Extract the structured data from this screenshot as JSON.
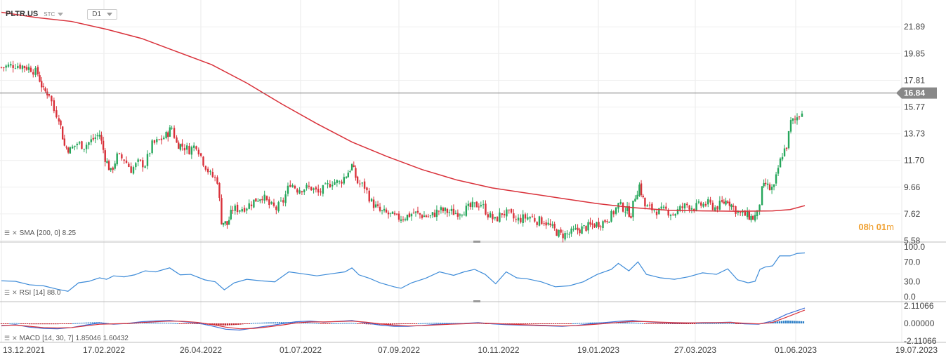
{
  "header": {
    "symbol": "PLTR.US",
    "type": "STC",
    "timeframe": "D1"
  },
  "indicators": {
    "sma": {
      "label": "SMA",
      "params": "[200,  0]",
      "value": "8.25"
    },
    "rsi": {
      "label": "RSI",
      "params": "[14]",
      "value": "88.0"
    },
    "macd": {
      "label": "MACD",
      "params": "[14, 30, 7]",
      "value1": "1.85046",
      "value2": "1.60432"
    }
  },
  "countdown": {
    "hours": "08",
    "h": "h",
    "minutes": "01",
    "m": "m"
  },
  "colors": {
    "up": "#26a65b",
    "down": "#d9313a",
    "sma": "#d9313a",
    "rsi": "#3d8bd8",
    "macd_line": "#3d6fd8",
    "signal_line": "#d9313a",
    "hist_up": "#2d7fc7",
    "hist_down": "#c0202a",
    "last_price_badge": "#888888"
  },
  "chart_data": {
    "type": "candlestick",
    "symbol": "PLTR.US",
    "last_price": 16.84,
    "y_ticks": [
      "21.89",
      "19.85",
      "17.81",
      "15.77",
      "13.73",
      "11.70",
      "9.66",
      "7.62",
      "5.58"
    ],
    "ylim": [
      5.58,
      23.4
    ],
    "x_ticks": [
      "13.12.2021",
      "17.02.2022",
      "26.04.2022",
      "01.07.2022",
      "07.09.2022",
      "10.11.2022",
      "19.01.2023",
      "27.03.2023",
      "01.06.2023",
      "19.07.2023"
    ],
    "close_path": [
      [
        0,
        18.8
      ],
      [
        10,
        18.9
      ],
      [
        20,
        19.0
      ],
      [
        30,
        18.9
      ],
      [
        42,
        18.7
      ],
      [
        52,
        18.3
      ],
      [
        60,
        17.0
      ],
      [
        68,
        16.8
      ],
      [
        75,
        15.5
      ],
      [
        82,
        15.0
      ],
      [
        90,
        12.8
      ],
      [
        98,
        12.5
      ],
      [
        108,
        13.0
      ],
      [
        118,
        12.8
      ],
      [
        128,
        13.2
      ],
      [
        140,
        13.7
      ],
      [
        148,
        11.9
      ],
      [
        156,
        10.8
      ],
      [
        165,
        12.0
      ],
      [
        175,
        11.8
      ],
      [
        185,
        11.0
      ],
      [
        195,
        11.5
      ],
      [
        205,
        11.4
      ],
      [
        215,
        12.9
      ],
      [
        225,
        13.2
      ],
      [
        235,
        13.6
      ],
      [
        243,
        14.2
      ],
      [
        250,
        13.0
      ],
      [
        258,
        12.8
      ],
      [
        268,
        12.5
      ],
      [
        278,
        12.9
      ],
      [
        288,
        11.6
      ],
      [
        298,
        10.6
      ],
      [
        308,
        10.2
      ],
      [
        314,
        7.1
      ],
      [
        322,
        6.8
      ],
      [
        330,
        8.0
      ],
      [
        340,
        8.0
      ],
      [
        350,
        8.2
      ],
      [
        360,
        8.6
      ],
      [
        372,
        9.0
      ],
      [
        382,
        8.3
      ],
      [
        392,
        8.0
      ],
      [
        402,
        8.6
      ],
      [
        412,
        10.0
      ],
      [
        422,
        9.5
      ],
      [
        432,
        9.6
      ],
      [
        442,
        9.6
      ],
      [
        452,
        9.2
      ],
      [
        462,
        9.6
      ],
      [
        472,
        10.1
      ],
      [
        482,
        10.0
      ],
      [
        492,
        10.6
      ],
      [
        500,
        11.3
      ],
      [
        508,
        10.0
      ],
      [
        518,
        9.7
      ],
      [
        528,
        8.5
      ],
      [
        540,
        7.8
      ],
      [
        552,
        7.6
      ],
      [
        564,
        7.3
      ],
      [
        576,
        7.4
      ],
      [
        588,
        7.7
      ],
      [
        600,
        7.5
      ],
      [
        612,
        7.4
      ],
      [
        624,
        7.9
      ],
      [
        636,
        7.8
      ],
      [
        648,
        7.7
      ],
      [
        660,
        7.9
      ],
      [
        672,
        8.2
      ],
      [
        684,
        8.4
      ],
      [
        694,
        7.6
      ],
      [
        704,
        7.1
      ],
      [
        714,
        7.7
      ],
      [
        724,
        7.6
      ],
      [
        734,
        7.1
      ],
      [
        744,
        7.3
      ],
      [
        754,
        7.4
      ],
      [
        764,
        7.1
      ],
      [
        774,
        7.1
      ],
      [
        786,
        6.5
      ],
      [
        798,
        6.0
      ],
      [
        810,
        6.1
      ],
      [
        822,
        6.4
      ],
      [
        834,
        6.6
      ],
      [
        846,
        6.8
      ],
      [
        858,
        7.0
      ],
      [
        870,
        7.5
      ],
      [
        880,
        8.3
      ],
      [
        890,
        8.0
      ],
      [
        898,
        7.6
      ],
      [
        904,
        9.0
      ],
      [
        910,
        9.8
      ],
      [
        918,
        8.2
      ],
      [
        928,
        8.0
      ],
      [
        938,
        7.8
      ],
      [
        948,
        7.9
      ],
      [
        958,
        7.6
      ],
      [
        968,
        8.0
      ],
      [
        978,
        8.3
      ],
      [
        988,
        8.1
      ],
      [
        998,
        8.3
      ],
      [
        1008,
        8.4
      ],
      [
        1018,
        8.1
      ],
      [
        1028,
        8.4
      ],
      [
        1036,
        8.7
      ],
      [
        1044,
        8.1
      ],
      [
        1054,
        7.6
      ],
      [
        1064,
        7.5
      ],
      [
        1072,
        7.3
      ],
      [
        1078,
        7.6
      ],
      [
        1085,
        9.4
      ],
      [
        1090,
        9.9
      ],
      [
        1096,
        9.5
      ],
      [
        1102,
        9.6
      ],
      [
        1108,
        11.1
      ],
      [
        1114,
        12.2
      ],
      [
        1120,
        12.8
      ],
      [
        1126,
        14.6
      ],
      [
        1132,
        14.8
      ],
      [
        1138,
        15.2
      ],
      [
        1142,
        15.6
      ],
      [
        1146,
        16.84
      ]
    ],
    "sma_200": {
      "name": "SMA [200, 0]",
      "points": [
        [
          0,
          23.0
        ],
        [
          50,
          22.6
        ],
        [
          100,
          22.3
        ],
        [
          150,
          21.7
        ],
        [
          200,
          21.0
        ],
        [
          250,
          20.0
        ],
        [
          300,
          19.0
        ],
        [
          350,
          17.6
        ],
        [
          400,
          16.0
        ],
        [
          450,
          14.5
        ],
        [
          500,
          13.1
        ],
        [
          550,
          12.0
        ],
        [
          600,
          11.0
        ],
        [
          650,
          10.2
        ],
        [
          700,
          9.6
        ],
        [
          750,
          9.2
        ],
        [
          800,
          8.8
        ],
        [
          850,
          8.4
        ],
        [
          900,
          8.1
        ],
        [
          950,
          7.9
        ],
        [
          1000,
          7.85
        ],
        [
          1050,
          7.82
        ],
        [
          1100,
          7.85
        ],
        [
          1125,
          7.95
        ],
        [
          1146,
          8.25
        ]
      ]
    },
    "rsi": {
      "name": "RSI [14]",
      "y_ticks": [
        "100.0",
        "70.0",
        "30.0",
        "0.0"
      ],
      "ylim": [
        0,
        100
      ],
      "points": [
        [
          0,
          32
        ],
        [
          20,
          31
        ],
        [
          40,
          24
        ],
        [
          60,
          22
        ],
        [
          80,
          15
        ],
        [
          95,
          11
        ],
        [
          110,
          28
        ],
        [
          125,
          31
        ],
        [
          140,
          38
        ],
        [
          150,
          35
        ],
        [
          160,
          42
        ],
        [
          175,
          40
        ],
        [
          190,
          44
        ],
        [
          205,
          52
        ],
        [
          220,
          50
        ],
        [
          240,
          58
        ],
        [
          255,
          44
        ],
        [
          270,
          45
        ],
        [
          290,
          34
        ],
        [
          305,
          30
        ],
        [
          318,
          14
        ],
        [
          332,
          28
        ],
        [
          350,
          35
        ],
        [
          370,
          32
        ],
        [
          390,
          30
        ],
        [
          410,
          50
        ],
        [
          430,
          46
        ],
        [
          450,
          42
        ],
        [
          470,
          46
        ],
        [
          490,
          50
        ],
        [
          500,
          58
        ],
        [
          510,
          44
        ],
        [
          525,
          37
        ],
        [
          540,
          28
        ],
        [
          560,
          20
        ],
        [
          570,
          17
        ],
        [
          585,
          28
        ],
        [
          605,
          37
        ],
        [
          625,
          50
        ],
        [
          645,
          43
        ],
        [
          660,
          50
        ],
        [
          675,
          55
        ],
        [
          690,
          45
        ],
        [
          705,
          26
        ],
        [
          720,
          50
        ],
        [
          735,
          38
        ],
        [
          750,
          36
        ],
        [
          770,
          30
        ],
        [
          790,
          20
        ],
        [
          810,
          22
        ],
        [
          830,
          30
        ],
        [
          850,
          45
        ],
        [
          870,
          55
        ],
        [
          880,
          67
        ],
        [
          895,
          52
        ],
        [
          908,
          70
        ],
        [
          920,
          45
        ],
        [
          940,
          38
        ],
        [
          960,
          35
        ],
        [
          980,
          40
        ],
        [
          1000,
          48
        ],
        [
          1020,
          45
        ],
        [
          1036,
          56
        ],
        [
          1050,
          34
        ],
        [
          1065,
          28
        ],
        [
          1075,
          31
        ],
        [
          1082,
          55
        ],
        [
          1090,
          60
        ],
        [
          1100,
          62
        ],
        [
          1110,
          82
        ],
        [
          1125,
          82
        ],
        [
          1135,
          87
        ],
        [
          1146,
          88
        ]
      ]
    },
    "macd": {
      "name": "MACD [14, 30, 7]",
      "y_ticks": [
        "2.11066",
        "0.00000",
        "-2.11066"
      ],
      "ylim": [
        -2.11066,
        2.11066
      ],
      "macd_points": [
        [
          0,
          -0.3
        ],
        [
          20,
          -0.15
        ],
        [
          40,
          -0.45
        ],
        [
          60,
          -0.6
        ],
        [
          80,
          -0.65
        ],
        [
          100,
          -0.5
        ],
        [
          120,
          -0.2
        ],
        [
          140,
          0.05
        ],
        [
          160,
          -0.1
        ],
        [
          180,
          0.0
        ],
        [
          200,
          0.2
        ],
        [
          220,
          0.3
        ],
        [
          240,
          0.35
        ],
        [
          260,
          0.2
        ],
        [
          280,
          0.05
        ],
        [
          300,
          -0.3
        ],
        [
          320,
          -0.7
        ],
        [
          340,
          -0.8
        ],
        [
          360,
          -0.55
        ],
        [
          380,
          -0.3
        ],
        [
          400,
          -0.05
        ],
        [
          420,
          0.2
        ],
        [
          440,
          0.28
        ],
        [
          460,
          0.15
        ],
        [
          480,
          0.25
        ],
        [
          500,
          0.35
        ],
        [
          520,
          0.05
        ],
        [
          540,
          -0.2
        ],
        [
          560,
          -0.35
        ],
        [
          580,
          -0.35
        ],
        [
          600,
          -0.25
        ],
        [
          620,
          -0.1
        ],
        [
          640,
          -0.05
        ],
        [
          660,
          0.0
        ],
        [
          680,
          0.1
        ],
        [
          700,
          -0.05
        ],
        [
          720,
          -0.15
        ],
        [
          740,
          -0.2
        ],
        [
          760,
          -0.25
        ],
        [
          780,
          -0.3
        ],
        [
          800,
          -0.35
        ],
        [
          820,
          -0.25
        ],
        [
          840,
          -0.05
        ],
        [
          860,
          0.1
        ],
        [
          880,
          0.25
        ],
        [
          900,
          0.35
        ],
        [
          920,
          0.2
        ],
        [
          940,
          0.1
        ],
        [
          960,
          0.05
        ],
        [
          980,
          0.05
        ],
        [
          1000,
          0.1
        ],
        [
          1020,
          0.1
        ],
        [
          1040,
          0.15
        ],
        [
          1060,
          -0.05
        ],
        [
          1080,
          -0.1
        ],
        [
          1100,
          0.3
        ],
        [
          1120,
          1.1
        ],
        [
          1146,
          1.85046
        ]
      ],
      "signal_points": [
        [
          0,
          -0.25
        ],
        [
          20,
          -0.2
        ],
        [
          40,
          -0.35
        ],
        [
          60,
          -0.5
        ],
        [
          80,
          -0.55
        ],
        [
          100,
          -0.5
        ],
        [
          120,
          -0.3
        ],
        [
          140,
          -0.1
        ],
        [
          160,
          -0.05
        ],
        [
          180,
          0.0
        ],
        [
          200,
          0.1
        ],
        [
          220,
          0.2
        ],
        [
          240,
          0.28
        ],
        [
          260,
          0.25
        ],
        [
          280,
          0.12
        ],
        [
          300,
          -0.12
        ],
        [
          320,
          -0.45
        ],
        [
          340,
          -0.65
        ],
        [
          360,
          -0.6
        ],
        [
          380,
          -0.42
        ],
        [
          400,
          -0.2
        ],
        [
          420,
          0.05
        ],
        [
          440,
          0.18
        ],
        [
          460,
          0.18
        ],
        [
          480,
          0.22
        ],
        [
          500,
          0.28
        ],
        [
          520,
          0.15
        ],
        [
          540,
          -0.05
        ],
        [
          560,
          -0.22
        ],
        [
          580,
          -0.3
        ],
        [
          600,
          -0.27
        ],
        [
          620,
          -0.18
        ],
        [
          640,
          -0.1
        ],
        [
          660,
          -0.04
        ],
        [
          680,
          0.04
        ],
        [
          700,
          0.0
        ],
        [
          720,
          -0.08
        ],
        [
          740,
          -0.14
        ],
        [
          760,
          -0.2
        ],
        [
          780,
          -0.25
        ],
        [
          800,
          -0.3
        ],
        [
          820,
          -0.27
        ],
        [
          840,
          -0.15
        ],
        [
          860,
          -0.02
        ],
        [
          880,
          0.12
        ],
        [
          900,
          0.24
        ],
        [
          920,
          0.22
        ],
        [
          940,
          0.15
        ],
        [
          960,
          0.1
        ],
        [
          980,
          0.07
        ],
        [
          1000,
          0.08
        ],
        [
          1020,
          0.09
        ],
        [
          1040,
          0.12
        ],
        [
          1060,
          0.02
        ],
        [
          1080,
          -0.06
        ],
        [
          1100,
          0.12
        ],
        [
          1120,
          0.75
        ],
        [
          1146,
          1.60432
        ]
      ]
    }
  }
}
